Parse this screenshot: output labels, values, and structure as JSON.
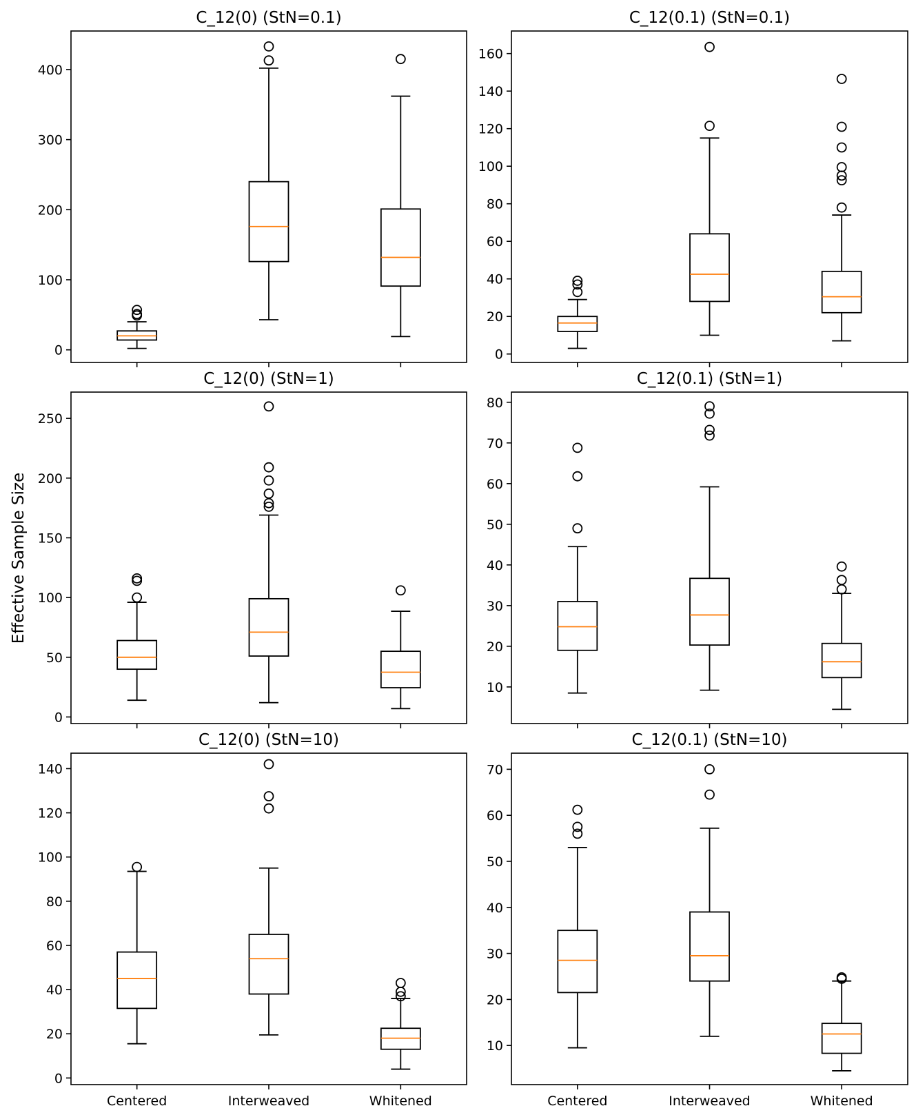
{
  "figure": {
    "ylabel": "Effective Sample Size",
    "box_color": "#000000",
    "median_color": "#ff7f0e",
    "categories": [
      "Centered",
      "Interweaved",
      "Whitened"
    ]
  },
  "chart_data": [
    {
      "type": "boxplot",
      "title": "C_12(0) (StN=0.1)",
      "categories": [
        "Centered",
        "Interweaved",
        "Whitened"
      ],
      "ylim": [
        -18,
        455
      ],
      "yticks": [
        0,
        100,
        200,
        300,
        400
      ],
      "show_xticklabels": false,
      "boxes": [
        {
          "whislo": 2,
          "q1": 14,
          "med": 20,
          "q3": 27,
          "whishi": 40,
          "fliers": [
            49,
            51,
            57
          ]
        },
        {
          "whislo": 43,
          "q1": 126,
          "med": 176,
          "q3": 240,
          "whishi": 402,
          "fliers": [
            413,
            433
          ]
        },
        {
          "whislo": 19,
          "q1": 91,
          "med": 132,
          "q3": 201,
          "whishi": 362,
          "fliers": [
            415
          ]
        }
      ]
    },
    {
      "type": "boxplot",
      "title": "C_12(0.1) (StN=0.1)",
      "categories": [
        "Centered",
        "Interweaved",
        "Whitened"
      ],
      "ylim": [
        -4.5,
        172
      ],
      "yticks": [
        0,
        20,
        40,
        60,
        80,
        100,
        120,
        140,
        160
      ],
      "show_xticklabels": false,
      "boxes": [
        {
          "whislo": 3,
          "q1": 12,
          "med": 16.5,
          "q3": 20,
          "whishi": 29,
          "fliers": [
            33,
            37,
            39
          ]
        },
        {
          "whislo": 10,
          "q1": 28,
          "med": 42.5,
          "q3": 64,
          "whishi": 115,
          "fliers": [
            121.5,
            163.5
          ]
        },
        {
          "whislo": 7,
          "q1": 22,
          "med": 30.5,
          "q3": 44,
          "whishi": 74,
          "fliers": [
            78,
            92.5,
            95,
            99.5,
            110,
            121,
            146.5
          ]
        }
      ]
    },
    {
      "type": "boxplot",
      "title": "C_12(0) (StN=1)",
      "categories": [
        "Centered",
        "Interweaved",
        "Whitened"
      ],
      "ylim": [
        -5.5,
        272
      ],
      "yticks": [
        0,
        50,
        100,
        150,
        200,
        250
      ],
      "show_xticklabels": false,
      "boxes": [
        {
          "whislo": 14,
          "q1": 40,
          "med": 50,
          "q3": 64,
          "whishi": 96,
          "fliers": [
            100,
            114,
            116
          ]
        },
        {
          "whislo": 12,
          "q1": 51,
          "med": 71,
          "q3": 99,
          "whishi": 169,
          "fliers": [
            176,
            179,
            187,
            198,
            209,
            260
          ]
        },
        {
          "whislo": 7,
          "q1": 24.5,
          "med": 37.5,
          "q3": 55,
          "whishi": 88.5,
          "fliers": [
            106
          ]
        }
      ]
    },
    {
      "type": "boxplot",
      "title": "C_12(0.1) (StN=1)",
      "categories": [
        "Centered",
        "Interweaved",
        "Whitened"
      ],
      "ylim": [
        1,
        82.5
      ],
      "yticks": [
        10,
        20,
        30,
        40,
        50,
        60,
        70,
        80
      ],
      "show_xticklabels": false,
      "boxes": [
        {
          "whislo": 8.5,
          "q1": 19,
          "med": 24.8,
          "q3": 31,
          "whishi": 44.5,
          "fliers": [
            49,
            61.8,
            68.8
          ]
        },
        {
          "whislo": 9.2,
          "q1": 20.3,
          "med": 27.7,
          "q3": 36.7,
          "whishi": 59.2,
          "fliers": [
            71.8,
            73.2,
            77.2,
            79
          ]
        },
        {
          "whislo": 4.5,
          "q1": 12.3,
          "med": 16.2,
          "q3": 20.7,
          "whishi": 33,
          "fliers": [
            34,
            36.3,
            39.6
          ]
        }
      ]
    },
    {
      "type": "boxplot",
      "title": "C_12(0) (StN=10)",
      "categories": [
        "Centered",
        "Interweaved",
        "Whitened"
      ],
      "ylim": [
        -3,
        147
      ],
      "yticks": [
        0,
        20,
        40,
        60,
        80,
        100,
        120,
        140
      ],
      "show_xticklabels": true,
      "boxes": [
        {
          "whislo": 15.5,
          "q1": 31.5,
          "med": 45,
          "q3": 57,
          "whishi": 93.5,
          "fliers": [
            95.5
          ]
        },
        {
          "whislo": 19.5,
          "q1": 38,
          "med": 54,
          "q3": 65,
          "whishi": 95,
          "fliers": [
            122,
            127.5,
            142
          ]
        },
        {
          "whislo": 4,
          "q1": 13,
          "med": 18,
          "q3": 22.5,
          "whishi": 36,
          "fliers": [
            37,
            39,
            43
          ]
        }
      ]
    },
    {
      "type": "boxplot",
      "title": "C_12(0.1) (StN=10)",
      "categories": [
        "Centered",
        "Interweaved",
        "Whitened"
      ],
      "ylim": [
        1.5,
        73.5
      ],
      "yticks": [
        10,
        20,
        30,
        40,
        50,
        60,
        70
      ],
      "show_xticklabels": true,
      "boxes": [
        {
          "whislo": 9.5,
          "q1": 21.5,
          "med": 28.5,
          "q3": 35,
          "whishi": 53,
          "fliers": [
            56,
            57.5,
            61.2
          ]
        },
        {
          "whislo": 12,
          "q1": 24,
          "med": 29.5,
          "q3": 39,
          "whishi": 57.2,
          "fliers": [
            64.5,
            70
          ]
        },
        {
          "whislo": 4.5,
          "q1": 8.3,
          "med": 12.5,
          "q3": 14.8,
          "whishi": 24,
          "fliers": [
            24.5,
            24.8
          ]
        }
      ]
    }
  ]
}
